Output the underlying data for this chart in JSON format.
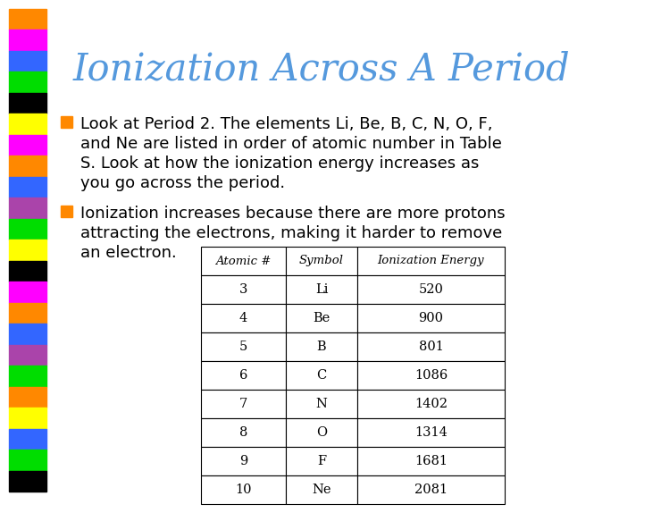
{
  "title": "Ionization Across A Period",
  "title_color": "#5599DD",
  "background_color": "#FFFFFF",
  "bullet1_lines": [
    "Look at Period 2. The elements Li, Be, B, C, N, O, F,",
    "and Ne are listed in order of atomic number in Table",
    "S. Look at how the ionization energy increases as",
    "you go across the period."
  ],
  "bullet2_lines": [
    "Ionization increases because there are more protons",
    "attracting the electrons, making it harder to remove",
    "an electron."
  ],
  "bullet_color": "#FF8800",
  "text_color": "#000000",
  "table_headers": [
    "Atomic #",
    "Symbol",
    "Ionization Energy"
  ],
  "table_data": [
    [
      "3",
      "Li",
      "520"
    ],
    [
      "4",
      "Be",
      "900"
    ],
    [
      "5",
      "B",
      "801"
    ],
    [
      "6",
      "C",
      "1086"
    ],
    [
      "7",
      "N",
      "1402"
    ],
    [
      "8",
      "O",
      "1314"
    ],
    [
      "9",
      "F",
      "1681"
    ],
    [
      "10",
      "Ne",
      "2081"
    ]
  ],
  "sidebar_colors": [
    "#FF8800",
    "#FF00FF",
    "#3366FF",
    "#00DD00",
    "#000000",
    "#FFFF00",
    "#FF00FF",
    "#FF8800",
    "#3366FF",
    "#AA44AA",
    "#00DD00",
    "#FFFF00",
    "#000000",
    "#FF00FF",
    "#FF8800",
    "#3366FF",
    "#AA44AA",
    "#00DD00",
    "#FF8800",
    "#FFFF00",
    "#3366FF",
    "#00DD00",
    "#000000"
  ]
}
